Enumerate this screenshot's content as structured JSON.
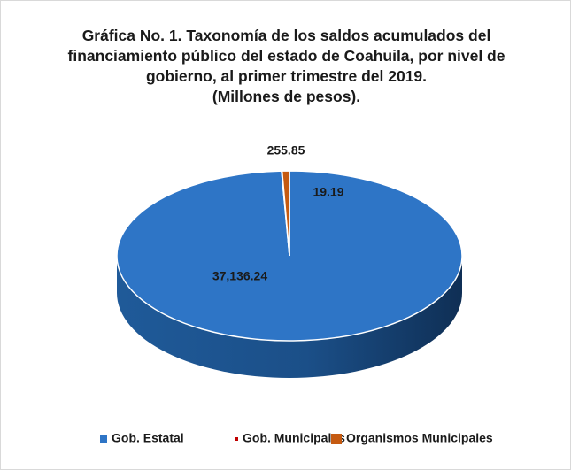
{
  "chart_data": {
    "type": "pie",
    "title": "Gráfica No. 1. Taxonomía de los saldos acumulados del financiamiento público del estado de Coahuila, por nivel de gobierno, al primer trimestre del 2019.",
    "subtitle": "(Millones de pesos).",
    "categories": [
      "Gob. Estatal",
      "Gob. Municipales",
      "Organismos Municipales"
    ],
    "values": [
      37136.24,
      19.19,
      255.85
    ],
    "value_labels": [
      "37,136.24",
      "19.19",
      "255.85"
    ],
    "colors": [
      "#2e75c6",
      "#c00000",
      "#c55a11"
    ],
    "legend": "bottom"
  }
}
